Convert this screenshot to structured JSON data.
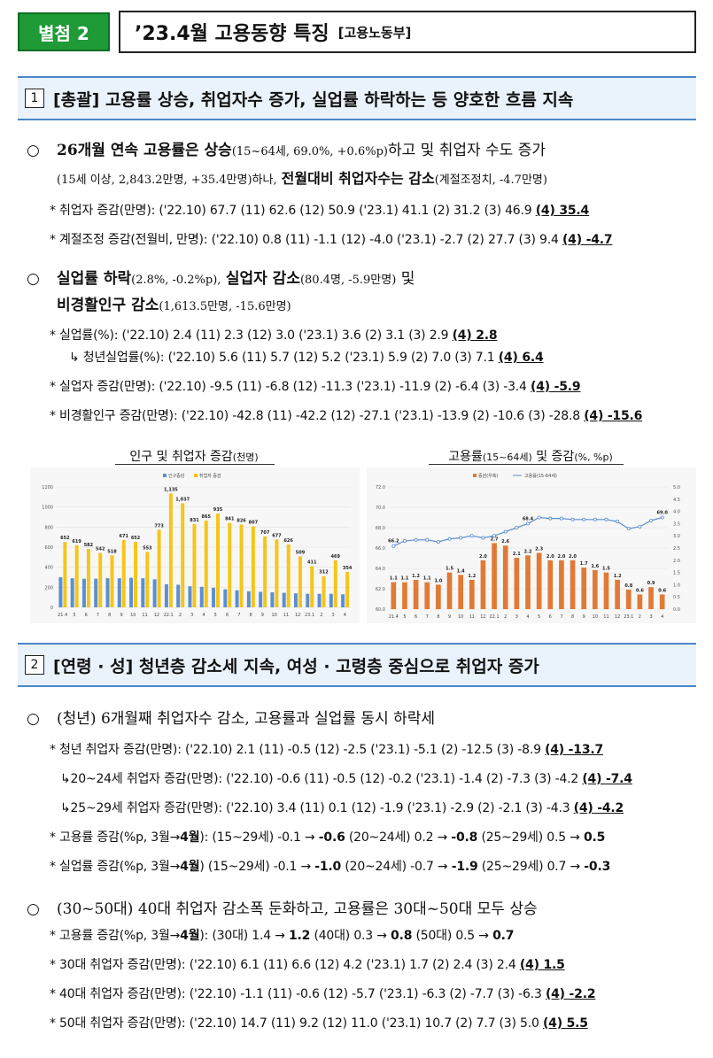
{
  "header": {
    "badge": "별첨 2",
    "title": "’23.4월 고용동향 특징",
    "source": "[고용노동부]"
  },
  "sec1": {
    "num": "1",
    "title": "[총괄] 고용률 상승, 취업자수 증가, 실업률 하락하는 등 양호한 흐름 지속"
  },
  "b1": {
    "marker": "○",
    "main": "26개월 연속 고용률은 상승",
    "paren": "(15~64세, 69.0%, +0.6%p)",
    "tail": "하고 및 취업자 수도 증가",
    "l2a": "(15세 이상, 2,843.2만명, +35.4만명)하나,",
    "l2b": "전월대비 취업자수는 감소",
    "l2c": "(계절조정치, -4.7만명)"
  },
  "s1": {
    "text": "*  취업자 증감(만명): ('22.10) 67.7 (11) 62.6 (12) 50.9 ('23.1) 41.1 (2) 31.2 (3) 46.9 ",
    "last": "(4) 35.4"
  },
  "s2": {
    "text": "*  계절조정 증감(전월비, 만명): ('22.10) 0.8 (11) -1.1 (12) -4.0 ('23.1) -2.7 (2) 27.7 (3) 9.4 ",
    "last": "(4) -4.7"
  },
  "b2": {
    "marker": "○",
    "a": "실업률 하락",
    "ap": "(2.8%, -0.2%p),",
    "b": "실업자 감소",
    "bp": "(80.4명, -5.9만명)",
    "c": "및",
    "d": "비경활인구 감소",
    "dp": "(1,613.5만명, -15.6만명)"
  },
  "s3": {
    "text": "*  실업률(%): ('22.10) 2.4 (11) 2.3 (12) 3.0 ('23.1) 3.6 (2) 3.1 (3) 2.9 ",
    "last": "(4) 2.8"
  },
  "s3b": {
    "text": "↳ 청년실업률(%): ('22.10) 5.6 (11) 5.7 (12) 5.2 ('23.1) 5.9 (2) 7.0 (3) 7.1 ",
    "last": "(4) 6.4"
  },
  "s4": {
    "text": "*  실업자 증감(만명): ('22.10) -9.5 (11) -6.8 (12) -11.3 ('23.1) -11.9 (2) -6.4 (3) -3.4 ",
    "last": "(4) -5.9"
  },
  "s5": {
    "text": "*  비경활인구 증감(만명): ('22.10) -42.8 (11) -42.2 (12) -27.1 ('23.1) -13.9 (2) -10.6 (3) -28.8 ",
    "last": "(4) -15.6"
  },
  "chart1title": {
    "a": "인구 및 취업자 증감",
    "b": "(천명)"
  },
  "chart2title": {
    "a": "고용률",
    "b": "(15~64세)",
    "c": " 및 증감",
    "d": "(%, %p)"
  },
  "chart_data": [
    {
      "type": "bar",
      "title": "인구 및 취업자 증감(천명)",
      "categories": [
        "21.4",
        "5",
        "6",
        "7",
        "8",
        "9",
        "10",
        "11",
        "12",
        "22.1",
        "2",
        "3",
        "4",
        "5",
        "6",
        "7",
        "8",
        "9",
        "10",
        "11",
        "12",
        "23.1",
        "2",
        "3",
        "4"
      ],
      "series": [
        {
          "name": "인구증감",
          "color": "#5b8fd0",
          "values": [
            300,
            290,
            285,
            285,
            290,
            290,
            295,
            290,
            280,
            230,
            225,
            210,
            205,
            195,
            180,
            170,
            160,
            155,
            150,
            145,
            140,
            135,
            135,
            135,
            130
          ]
        },
        {
          "name": "취업자 증감",
          "color": "#f5c518",
          "values": [
            652,
            619,
            582,
            542,
            518,
            671,
            652,
            553,
            773,
            1135,
            1037,
            831,
            865,
            935,
            841,
            826,
            807,
            707,
            677,
            626,
            509,
            411,
            312,
            469,
            354
          ]
        }
      ],
      "labels": [
        "652",
        "619",
        "582",
        "542",
        "518",
        "671",
        "652",
        "553",
        "773",
        "1,135",
        "1,037",
        "831",
        "865",
        "935",
        "841",
        "826",
        "807",
        "707",
        "677",
        "626",
        "509",
        "411",
        "312",
        "469",
        "354"
      ],
      "yticks": [
        "0",
        "200",
        "400",
        "600",
        "800",
        "1000",
        "1200"
      ],
      "ylim": [
        0,
        1200
      ],
      "legend": "top-center"
    },
    {
      "type": "bar+line",
      "title": "고용률(15~64세) 및 증감(%, %p)",
      "categories": [
        "21.4",
        "5",
        "6",
        "7",
        "8",
        "9",
        "10",
        "11",
        "12",
        "22.1",
        "2",
        "3",
        "4",
        "5",
        "6",
        "7",
        "8",
        "9",
        "10",
        "11",
        "12",
        "23.1",
        "2",
        "3",
        "4"
      ],
      "series": [
        {
          "name": "증감(우축)",
          "color": "#e07a35",
          "values": [
            1.1,
            1.1,
            1.2,
            1.1,
            1.0,
            1.5,
            1.4,
            1.2,
            2.0,
            2.7,
            2.6,
            2.1,
            2.2,
            2.3,
            2.0,
            2.0,
            2.0,
            1.7,
            1.6,
            1.5,
            1.2,
            0.8,
            0.6,
            0.9,
            0.6
          ]
        },
        {
          "name": "고용률(15-64세)",
          "color": "#5b8fd0",
          "values": [
            66.2,
            66.7,
            66.8,
            66.8,
            66.6,
            66.9,
            67.0,
            67.2,
            67.0,
            67.2,
            67.6,
            68.0,
            68.4,
            69.0,
            68.9,
            68.9,
            68.8,
            68.8,
            68.8,
            68.8,
            68.6,
            67.9,
            68.1,
            68.7,
            69.0
          ]
        }
      ],
      "line_labels": {
        "0": "66.2",
        "12": "68.4",
        "24": "69.0"
      },
      "bar_labels": [
        "1.1",
        "1.1",
        "1.2",
        "1.1",
        "1.0",
        "1.5",
        "1.4",
        "1.2",
        "2.0",
        "2.7",
        "2.6",
        "2.1",
        "2.2",
        "2.3",
        "2.0",
        "2.0",
        "2.0",
        "1.7",
        "1.6",
        "1.5",
        "1.2",
        "0.8",
        "0.6",
        "0.9",
        "0.6"
      ],
      "yticks_left": [
        "60.0",
        "62.0",
        "64.0",
        "66.0",
        "68.0",
        "70.0",
        "72.0"
      ],
      "ylim_left": [
        60,
        72
      ],
      "yticks_right": [
        "0.0",
        "0.5",
        "1.0",
        "1.5",
        "2.0",
        "2.5",
        "3.0",
        "3.5",
        "4.0",
        "4.5",
        "5.0"
      ],
      "ylim_right": [
        0,
        5
      ],
      "legend": "top-center"
    }
  ],
  "sec2": {
    "num": "2",
    "title": "[연령 · 성] 청년층 감소세 지속, 여성 · 고령층 중심으로 취업자 증가"
  },
  "b3": {
    "marker": "○",
    "text": "(청년) 6개월째 취업자수 감소, 고용률과 실업률 동시 하락세"
  },
  "t1": {
    "text": "*  청년 취업자 증감(만명): ('22.10) 2.1 (11) -0.5 (12) -2.5 ('23.1) -5.1 (2) -12.5 (3) -8.9 ",
    "last": "(4) -13.7"
  },
  "t2": {
    "text": "↳20~24세 취업자 증감(만명): ('22.10) -0.6 (11) -0.5 (12) -0.2 ('23.1) -1.4 (2) -7.3 (3) -4.2 ",
    "last": "(4) -7.4"
  },
  "t3": {
    "text": "↳25~29세 취업자 증감(만명): ('22.10) 3.4 (11) 0.1 (12) -1.9 ('23.1) -2.9 (2) -2.1 (3) -4.3 ",
    "last": "(4) -4.2"
  },
  "t4": {
    "a": "*  고용률 증감(%p, 3월→",
    "b": "4월",
    "c": "): (15~29세) -0.1 → ",
    "d": "-0.6",
    "e": " (20~24세) 0.2 → ",
    "f": "-0.8",
    "g": " (25~29세) 0.5 → ",
    "h": "0.5"
  },
  "t5": {
    "a": "*  실업률 증감(%p, 3월→",
    "b": "4월",
    "c": ") (15~29세) -0.1 → ",
    "d": "-1.0",
    "e": " (20~24세) -0.7 → ",
    "f": "-1.9",
    "g": " (25~29세) 0.7 → ",
    "h": "-0.3"
  },
  "b4": {
    "marker": "○",
    "text": "(30~50대) 40대 취업자 감소폭 둔화하고, 고용률은 30대~50대 모두 상승"
  },
  "u1": {
    "a": "*  고용률 증감(%p, 3월→",
    "b": "4월",
    "c": "): (30대) 1.4 → ",
    "d": "1.2",
    "e": " (40대) 0.3 → ",
    "f": "0.8",
    "g": " (50대) 0.5 → ",
    "h": "0.7"
  },
  "u2": {
    "text": "*  30대 취업자 증감(만명): ('22.10) 6.1 (11) 6.6 (12) 4.2 ('23.1) 1.7 (2) 2.4 (3) 2.4 ",
    "last": "(4) 1.5"
  },
  "u3": {
    "text": "*  40대 취업자 증감(만명): ('22.10) -1.1 (11) -0.6 (12) -5.7 ('23.1) -6.3 (2) -7.7 (3) -6.3 ",
    "last": "(4) -2.2"
  },
  "u4": {
    "text": "*  50대 취업자 증감(만명): ('22.10) 14.7 (11) 9.2 (12) 11.0 ('23.1) 10.7 (2) 7.7 (3) 5.0 ",
    "last": "(4) 5.5"
  }
}
